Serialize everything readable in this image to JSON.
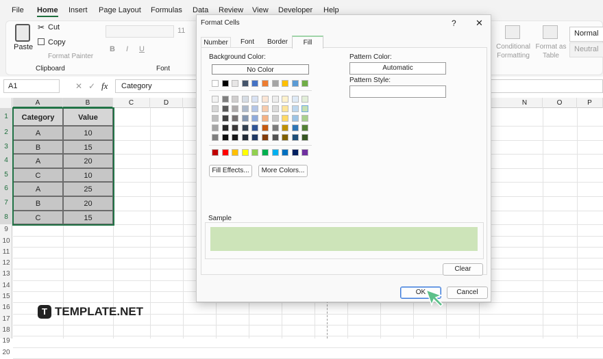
{
  "menu": [
    "File",
    "Home",
    "Insert",
    "Page Layout",
    "Formulas",
    "Data",
    "Review",
    "View",
    "Developer",
    "Help"
  ],
  "ribbon": {
    "paste": "Paste",
    "cut": "Cut",
    "copy": "Copy",
    "format_painter": "Format Painter",
    "clipboard": "Clipboard",
    "font_buttons": [
      "B",
      "I",
      "U"
    ],
    "font_size": "11",
    "font": "Font",
    "conditional_formatting": "Conditional Formatting",
    "format_as_table": "Format as Table",
    "styles": [
      "Normal",
      "Neutral"
    ]
  },
  "formula_bar": {
    "name_box": "A1",
    "fx": "fx",
    "content": "Category"
  },
  "columns": [
    "A",
    "B",
    "C",
    "D",
    "N",
    "O",
    "P"
  ],
  "rows": [
    1,
    2,
    3,
    4,
    5,
    6,
    7,
    8,
    9,
    10,
    11,
    12,
    13,
    14,
    15,
    16,
    17,
    18,
    19,
    20
  ],
  "table": {
    "header": [
      "Category",
      "Value"
    ],
    "rows": [
      [
        "A",
        10
      ],
      [
        "B",
        15
      ],
      [
        "A",
        20
      ],
      [
        "C",
        10
      ],
      [
        "A",
        25
      ],
      [
        "B",
        20
      ],
      [
        "C",
        15
      ]
    ]
  },
  "dialog": {
    "title": "Format Cells",
    "help": "?",
    "close": "✕",
    "tabs": [
      "Number",
      "Font",
      "Border",
      "Fill"
    ],
    "background_color": "Background Color:",
    "no_color": "No Color",
    "fill_effects": "Fill Effects...",
    "more_colors": "More Colors...",
    "pattern_color": "Pattern Color:",
    "pattern_color_value": "Automatic",
    "pattern_style": "Pattern Style:",
    "sample": "Sample",
    "clear": "Clear",
    "ok": "OK",
    "cancel": "Cancel"
  },
  "watermark": "TEMPLATE.NET"
}
